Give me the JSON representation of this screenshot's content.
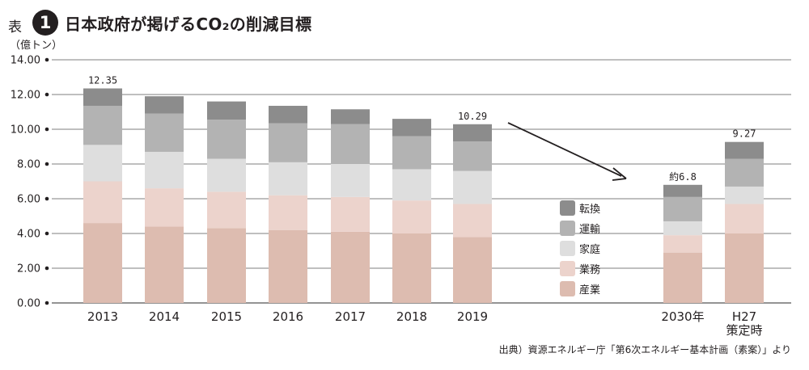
{
  "header": {
    "prefix": "表",
    "badge": "1",
    "title": "日本政府が掲げるCO₂の削減目標"
  },
  "source": "出典）資源エネルギー庁「第6次エネルギー基本計画（素案）」より",
  "colors": {
    "転換": "#8c8c8c",
    "運輸": "#b3b3b3",
    "家庭": "#dedede",
    "業務": "#ecd3cc",
    "産業": "#ddbcb0",
    "axis": "#231f20",
    "grid": "#555555"
  },
  "chart_data": {
    "type": "bar",
    "stacked": true,
    "ylabel": "（億トン）",
    "ylim": [
      0,
      14
    ],
    "yticks": [
      "0.00",
      "2.00",
      "4.00",
      "6.00",
      "8.00",
      "10.00",
      "12.00",
      "14.00"
    ],
    "grid": true,
    "legend": "center-right",
    "categories": [
      "2013",
      "2014",
      "2015",
      "2016",
      "2017",
      "2018",
      "2019",
      "2030年",
      "H27\n策定時"
    ],
    "series": [
      {
        "name": "産業",
        "values": [
          4.6,
          4.4,
          4.3,
          4.2,
          4.1,
          4.0,
          3.8,
          2.9,
          4.0
        ]
      },
      {
        "name": "業務",
        "values": [
          2.4,
          2.2,
          2.1,
          2.0,
          2.0,
          1.9,
          1.9,
          1.0,
          1.7
        ]
      },
      {
        "name": "家庭",
        "values": [
          2.1,
          2.1,
          1.9,
          1.9,
          1.9,
          1.8,
          1.9,
          0.8,
          1.0
        ]
      },
      {
        "name": "運輸",
        "values": [
          2.25,
          2.2,
          2.25,
          2.25,
          2.3,
          1.9,
          1.7,
          1.4,
          1.6
        ]
      },
      {
        "name": "転換",
        "values": [
          1.0,
          1.0,
          1.05,
          1.0,
          0.85,
          1.0,
          0.99,
          0.7,
          0.97
        ]
      }
    ],
    "data_labels": [
      {
        "category": "2013",
        "text": "12.35"
      },
      {
        "category": "2019",
        "text": "10.29"
      },
      {
        "category": "2030年",
        "text": "約6.8"
      },
      {
        "category": "H27\n策定時",
        "text": "9.27"
      }
    ],
    "legend_order": [
      "転換",
      "運輸",
      "家庭",
      "業務",
      "産業"
    ]
  }
}
